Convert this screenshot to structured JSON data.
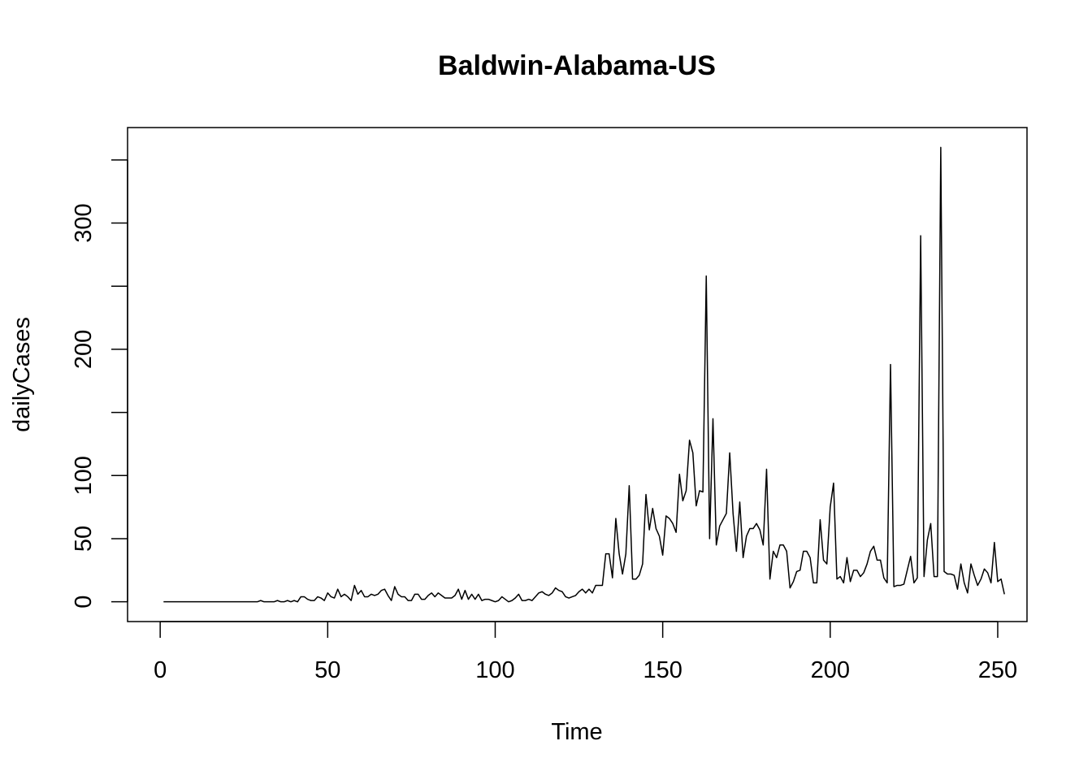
{
  "chart_data": {
    "type": "line",
    "title": "Baldwin-Alabama-US",
    "xlabel": "Time",
    "ylabel": "dailyCases",
    "xlim": [
      1,
      248
    ],
    "ylim": [
      0,
      360
    ],
    "x_ticks": [
      0,
      50,
      100,
      150,
      200,
      250
    ],
    "y_ticks": [
      0,
      50,
      100,
      150,
      200,
      250,
      300,
      350
    ],
    "y_tick_labels": [
      "0",
      "50",
      "100",
      "",
      "200",
      "",
      "300",
      ""
    ],
    "grid": false,
    "legend": "none",
    "line_color": "#000000",
    "series": [
      {
        "values": [
          0,
          0,
          0,
          0,
          0,
          0,
          0,
          0,
          0,
          0,
          0,
          0,
          0,
          0,
          0,
          0,
          0,
          0,
          0,
          0,
          0,
          0,
          0,
          0,
          0,
          0,
          0,
          0,
          0,
          1,
          0,
          0,
          0,
          0,
          1,
          0,
          0,
          1,
          0,
          1,
          0,
          4,
          4,
          2,
          1,
          1,
          4,
          3,
          1,
          7,
          4,
          3,
          10,
          4,
          6,
          4,
          1,
          13,
          6,
          9,
          4,
          4,
          6,
          5,
          6,
          9,
          10,
          5,
          1,
          12,
          6,
          4,
          4,
          1,
          1,
          6,
          6,
          2,
          2,
          5,
          7,
          4,
          7,
          5,
          3,
          3,
          3,
          5,
          10,
          2,
          9,
          2,
          6,
          2,
          6,
          1,
          2,
          2,
          1,
          0,
          1,
          4,
          2,
          0,
          1,
          3,
          6,
          1,
          1,
          2,
          1,
          4,
          7,
          8,
          6,
          5,
          7,
          11,
          9,
          8,
          4,
          3,
          4,
          5,
          8,
          10,
          7,
          10,
          7,
          13,
          13,
          13,
          38,
          38,
          19,
          66,
          38,
          22,
          38,
          92,
          18,
          18,
          21,
          30,
          85,
          57,
          74,
          58,
          52,
          37,
          68,
          66,
          62,
          55,
          101,
          80,
          88,
          128,
          118,
          76,
          88,
          87,
          258,
          50,
          145,
          45,
          60,
          65,
          70,
          118,
          70,
          40,
          79,
          35,
          52,
          58,
          58,
          62,
          57,
          45,
          105,
          18,
          40,
          35,
          45,
          45,
          40,
          11,
          16,
          24,
          25,
          40,
          40,
          35,
          15,
          15,
          65,
          33,
          30,
          75,
          94,
          18,
          20,
          15,
          35,
          16,
          25,
          25,
          20,
          23,
          30,
          40,
          44,
          33,
          33,
          19,
          15,
          188,
          12,
          13,
          13,
          14,
          25,
          36,
          15,
          19,
          290,
          20,
          49,
          62,
          20,
          20,
          360,
          24,
          22,
          22,
          21,
          10,
          30,
          15,
          7,
          30,
          21,
          13,
          18,
          26,
          23,
          15,
          47,
          16,
          18,
          6
        ]
      }
    ]
  }
}
